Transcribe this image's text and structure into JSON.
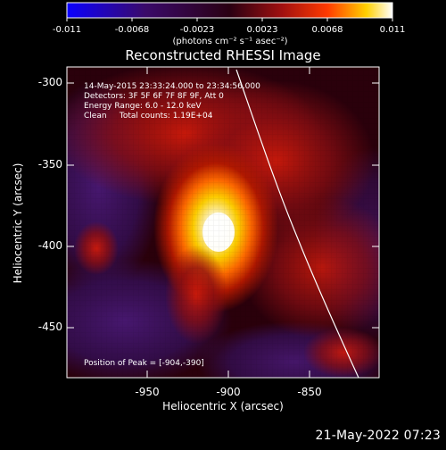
{
  "chart_data": {
    "type": "heatmap",
    "title": "Reconstructed RHESSI Image",
    "xlabel": "Heliocentric X (arcsec)",
    "ylabel": "Heliocentric Y (arcsec)",
    "x_ticks": [
      "-950",
      "-900",
      "-850"
    ],
    "y_ticks": [
      "-300",
      "-350",
      "-400",
      "-450"
    ],
    "colorbar": {
      "ticks": [
        "-0.011",
        "-0.0068",
        "-0.0023",
        "0.0023",
        "0.0068",
        "0.011"
      ],
      "unit_label": "(photons cm⁻² s⁻¹ asec⁻²)",
      "range": [
        -0.011,
        0.011
      ]
    },
    "annotations": [
      "14-May-2015 23:33:24.000 to 23:34:56.000",
      "Detectors: 3F 5F 6F 7F 8F 9F, Att 0",
      "Energy Range: 6.0 - 12.0 keV",
      "Clean     Total counts: 1.19E+04"
    ],
    "peak_position_text": "Position of Peak = [-904,-390]",
    "colors": {
      "background": "#000000",
      "limb_line": "#ffffff"
    }
  },
  "footer": {
    "timestamp": "21-May-2022 07:23"
  }
}
